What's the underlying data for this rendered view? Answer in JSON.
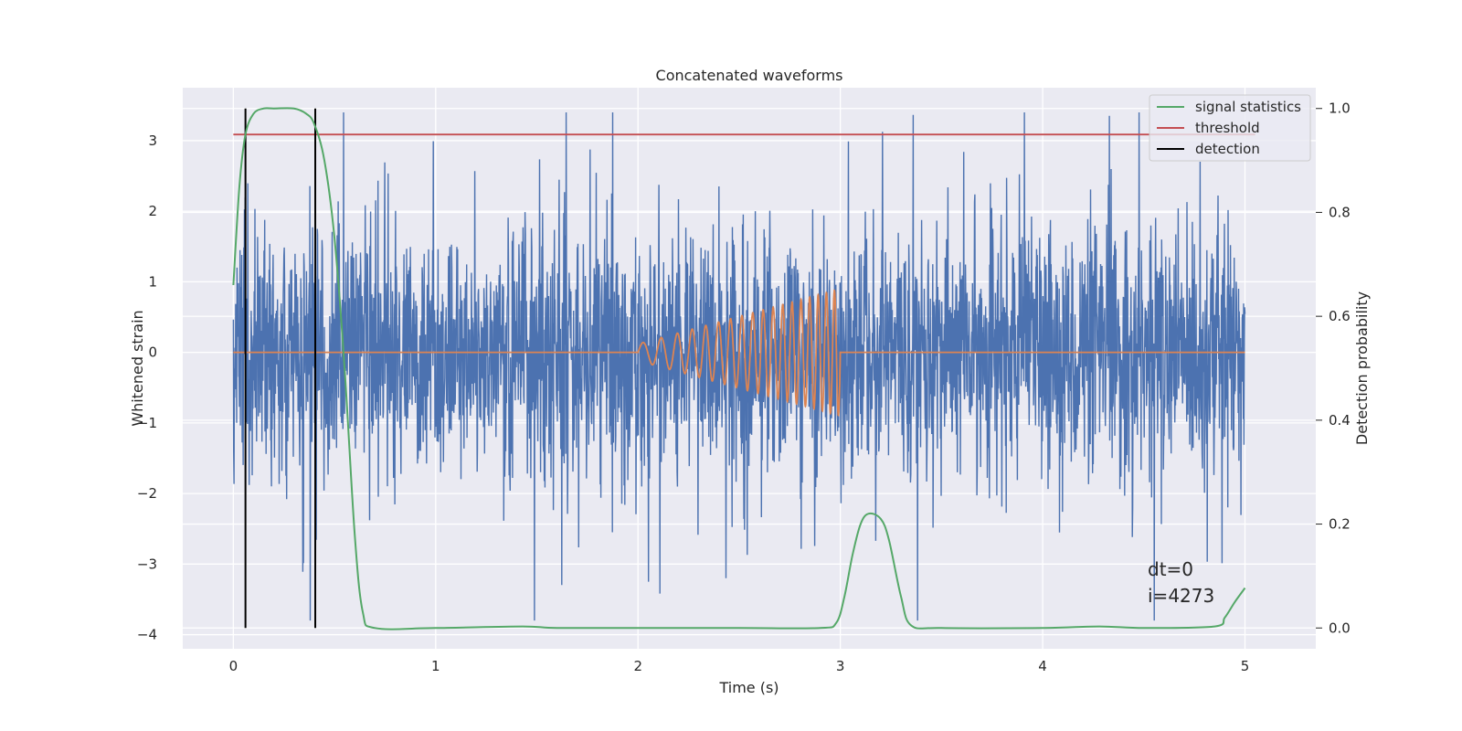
{
  "chart_data": {
    "type": "line",
    "title": "Concatenated waveforms",
    "xlabel": "Time (s)",
    "ylabel": "Whitened strain",
    "ylabel_right": "Detection probability",
    "xlim": [
      -0.25,
      5.35
    ],
    "ylim": [
      -4.2,
      3.75
    ],
    "ylim_right": [
      -0.04,
      1.04
    ],
    "x_ticks": [
      0,
      1,
      2,
      3,
      4,
      5
    ],
    "y_ticks": [
      -4,
      -3,
      -2,
      -1,
      0,
      1,
      2,
      3
    ],
    "y_ticks_right": [
      0.0,
      0.2,
      0.4,
      0.6,
      0.8,
      1.0
    ],
    "grid": true,
    "legend_position": "top-right",
    "colors": {
      "strain": "#4c72b0",
      "injected_signal": "#dd8452",
      "signal_statistics": "#55a868",
      "threshold": "#c44e52",
      "detection": "#000000",
      "background": "#eaeaf2"
    },
    "series": [
      {
        "name": "",
        "axis": "left",
        "kind": "noise",
        "x_range": [
          0,
          5
        ],
        "approx_range": [
          -3.8,
          3.4
        ]
      },
      {
        "name": "",
        "axis": "left",
        "kind": "chirp",
        "x_range": [
          0,
          5
        ],
        "chirp_start": 2.0,
        "chirp_end": 3.0,
        "amplitude_end": 0.9
      },
      {
        "name": "signal statistics",
        "axis": "right",
        "x": [
          0,
          0.03,
          0.06,
          0.1,
          0.15,
          0.2,
          0.3,
          0.36,
          0.4,
          0.45,
          0.5,
          0.55,
          0.6,
          0.64,
          0.7,
          1.0,
          1.43,
          1.6,
          2.0,
          2.5,
          2.9,
          2.98,
          3.02,
          3.06,
          3.1,
          3.14,
          3.2,
          3.24,
          3.3,
          3.35,
          3.5,
          4.0,
          4.28,
          4.5,
          4.85,
          4.9,
          4.95,
          5.0
        ],
        "values": [
          0.66,
          0.85,
          0.95,
          0.99,
          1.0,
          1.0,
          1.0,
          0.99,
          0.97,
          0.9,
          0.75,
          0.5,
          0.18,
          0.03,
          0.0,
          0.0,
          0.003,
          0.0,
          0.0,
          0.0,
          0.0,
          0.01,
          0.06,
          0.14,
          0.2,
          0.22,
          0.21,
          0.17,
          0.06,
          0.005,
          0.0,
          0.0,
          0.003,
          0.0,
          0.003,
          0.02,
          0.05,
          0.077
        ]
      },
      {
        "name": "threshold",
        "axis": "right",
        "x": [
          0,
          5.05
        ],
        "values": [
          0.95,
          0.95
        ]
      },
      {
        "name": "detection",
        "axis": "right",
        "x": [
          0.06,
          0.405
        ],
        "values": [
          1.0,
          1.0
        ]
      }
    ],
    "annotations": [
      "dt=0",
      "i=4273"
    ]
  }
}
